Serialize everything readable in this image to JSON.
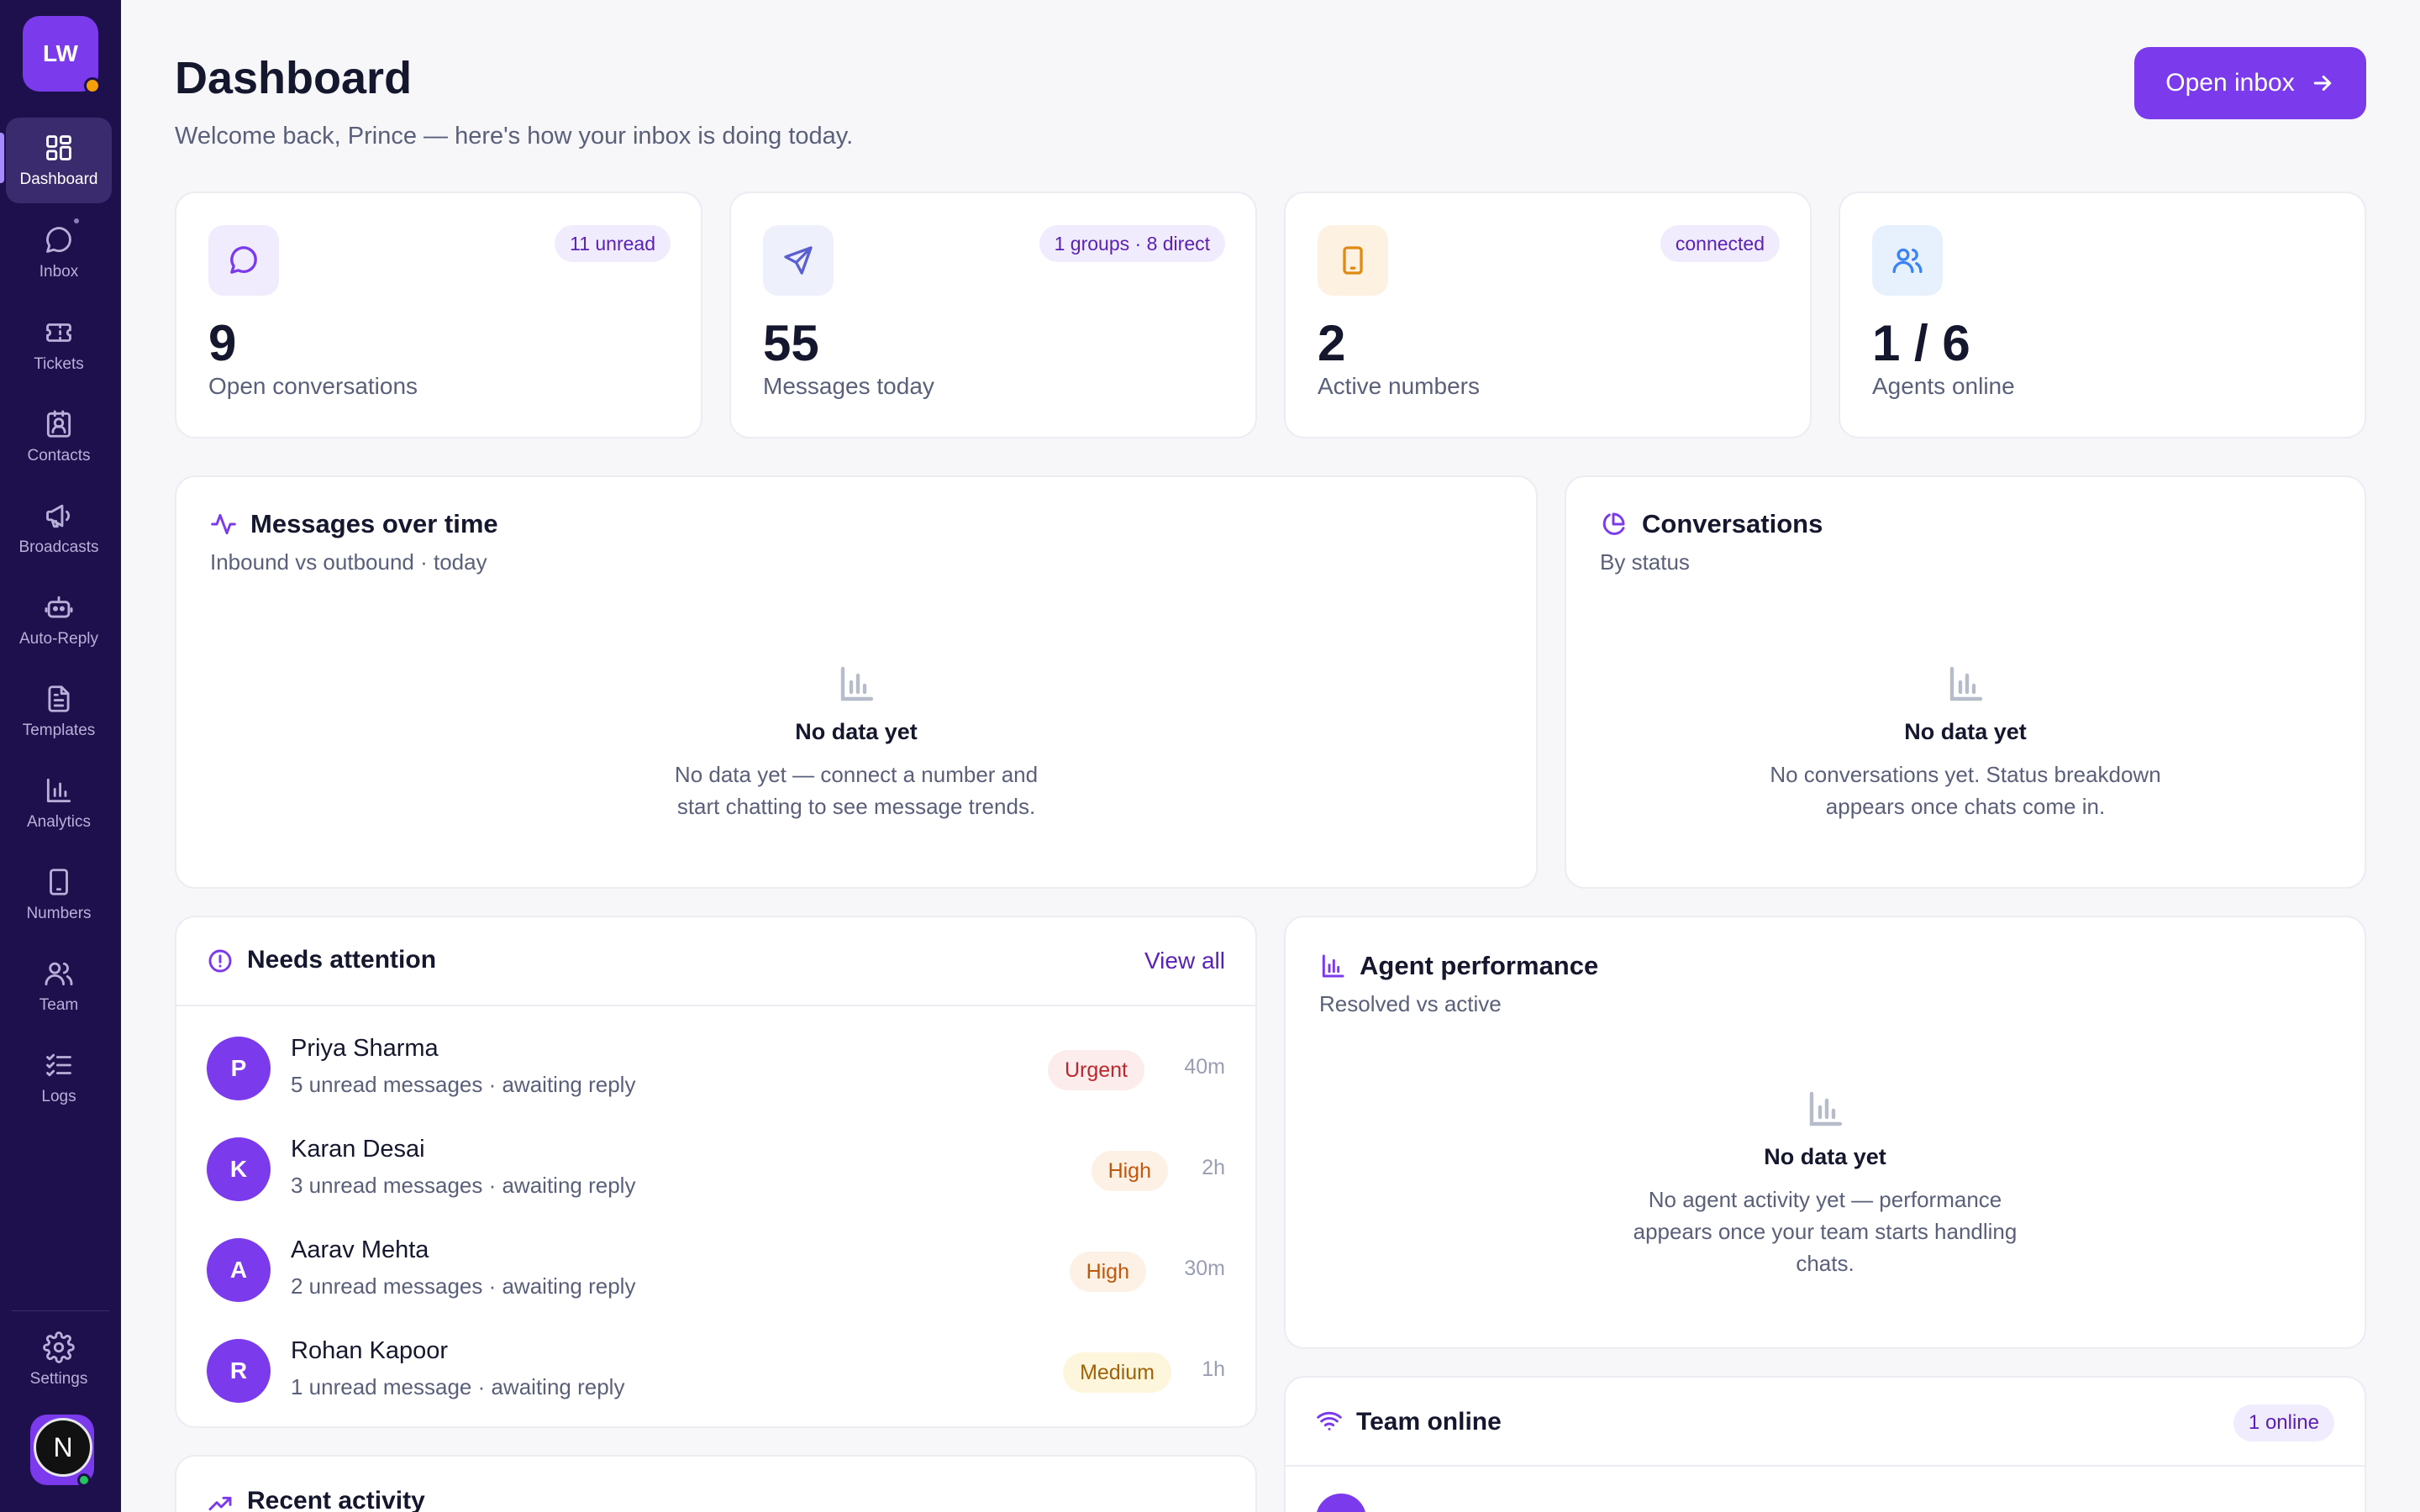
{
  "sidebar": {
    "logo": "LW",
    "items": [
      {
        "label": "Dashboard",
        "icon": "grid-icon"
      },
      {
        "label": "Inbox",
        "icon": "chat-bubble-icon"
      },
      {
        "label": "Tickets",
        "icon": "ticket-icon"
      },
      {
        "label": "Contacts",
        "icon": "contact-card-icon"
      },
      {
        "label": "Broadcasts",
        "icon": "megaphone-icon"
      },
      {
        "label": "Auto-Reply",
        "icon": "bot-icon"
      },
      {
        "label": "Templates",
        "icon": "document-icon"
      },
      {
        "label": "Analytics",
        "icon": "bar-chart-icon"
      },
      {
        "label": "Numbers",
        "icon": "phone-icon"
      },
      {
        "label": "Team",
        "icon": "users-icon"
      },
      {
        "label": "Logs",
        "icon": "checklist-icon"
      }
    ],
    "settings_label": "Settings",
    "user_initial": "N"
  },
  "header": {
    "title": "Dashboard",
    "subtitle": "Welcome back, Prince — here's how your inbox is doing today.",
    "open_inbox_label": "Open inbox"
  },
  "stats": [
    {
      "value": "9",
      "label": "Open conversations",
      "badge": "11 unread",
      "icon": "chat-bubble-icon"
    },
    {
      "value": "55",
      "label": "Messages today",
      "badge": "1 groups · 8 direct",
      "icon": "send-icon"
    },
    {
      "value": "2",
      "label": "Active numbers",
      "badge": "connected",
      "icon": "phone-icon"
    },
    {
      "value": "1 / 6",
      "label": "Agents online",
      "badge": "",
      "icon": "users-icon"
    }
  ],
  "messages_chart": {
    "title": "Messages over time",
    "subtitle": "Inbound vs outbound · today",
    "empty_title": "No data yet",
    "empty_desc_1": "No data yet — connect a number and",
    "empty_desc_2": "start chatting to see message trends."
  },
  "conversations_chart": {
    "title": "Conversations",
    "subtitle": "By status",
    "empty_title": "No data yet",
    "empty_desc_1": "No conversations yet. Status breakdown",
    "empty_desc_2": "appears once chats come in."
  },
  "needs_attention": {
    "title": "Needs attention",
    "view_all": "View all",
    "rows": [
      {
        "initial": "P",
        "name": "Priya Sharma",
        "sub": "5 unread messages · awaiting reply",
        "priority": "Urgent",
        "time": "40m"
      },
      {
        "initial": "K",
        "name": "Karan Desai",
        "sub": "3 unread messages · awaiting reply",
        "priority": "High",
        "time": "2h"
      },
      {
        "initial": "A",
        "name": "Aarav Mehta",
        "sub": "2 unread messages · awaiting reply",
        "priority": "High",
        "time": "30m"
      },
      {
        "initial": "R",
        "name": "Rohan Kapoor",
        "sub": "1 unread message · awaiting reply",
        "priority": "Medium",
        "time": "1h"
      }
    ]
  },
  "agent_performance": {
    "title": "Agent performance",
    "subtitle": "Resolved vs active",
    "empty_title": "No data yet",
    "empty_desc_1": "No agent activity yet — performance",
    "empty_desc_2": "appears once your team starts handling",
    "empty_desc_3": "chats."
  },
  "recent_activity": {
    "title": "Recent activity"
  },
  "team_online": {
    "title": "Team online",
    "badge": "1 online"
  },
  "colors": {
    "accent": "#7c3aed",
    "sidebar": "#1e0f4d"
  }
}
